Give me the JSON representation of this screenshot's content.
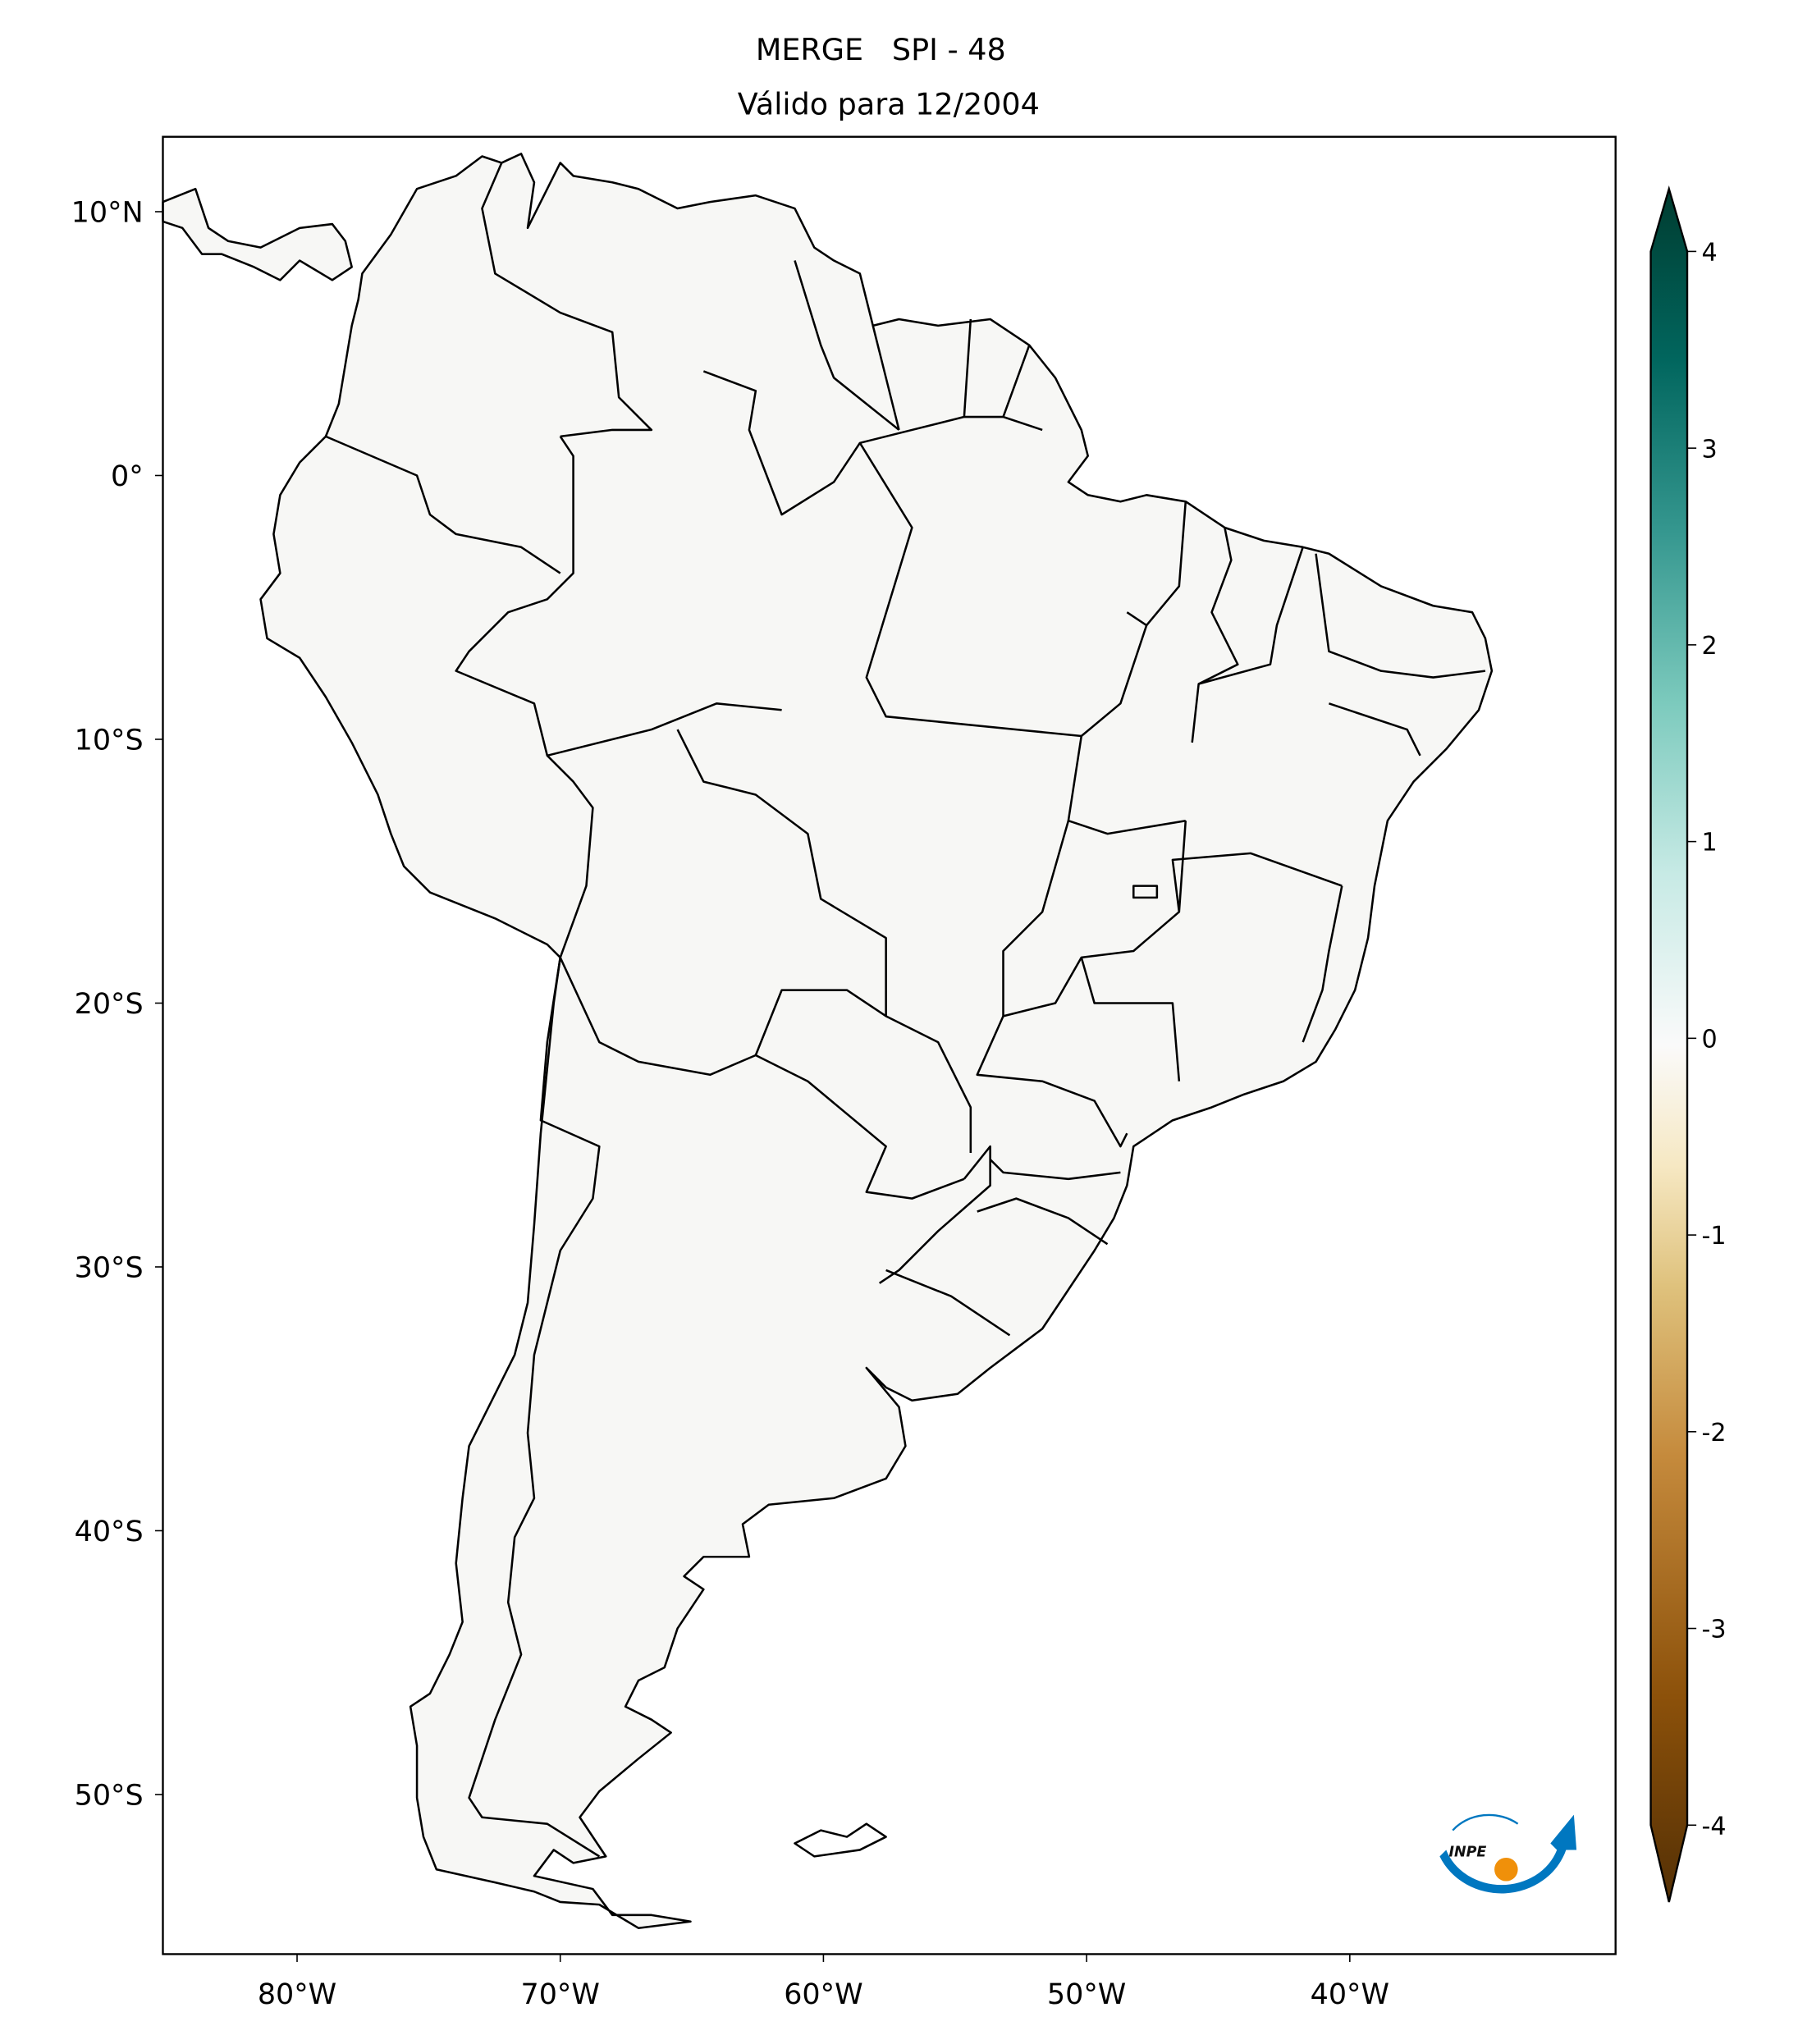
{
  "title": {
    "line1": "MERGE   SPI - 48",
    "line2": "Válido para 12/2004"
  },
  "map": {
    "projection": "PlateCarree",
    "lon_range": [
      -85,
      -30
    ],
    "lat_range": [
      -56,
      13
    ],
    "lat_ticks": [
      {
        "value": 10,
        "label": "10°N"
      },
      {
        "value": 0,
        "label": "0°"
      },
      {
        "value": -10,
        "label": "10°S"
      },
      {
        "value": -20,
        "label": "20°S"
      },
      {
        "value": -30,
        "label": "30°S"
      },
      {
        "value": -40,
        "label": "40°S"
      },
      {
        "value": -50,
        "label": "50°S"
      }
    ],
    "lon_ticks": [
      {
        "value": -80,
        "label": "80°W"
      },
      {
        "value": -70,
        "label": "70°W"
      },
      {
        "value": -60,
        "label": "60°W"
      },
      {
        "value": -50,
        "label": "50°W"
      },
      {
        "value": -40,
        "label": "40°W"
      }
    ]
  },
  "colorbar": {
    "colormap": "BrBG",
    "extend": "both",
    "range": [
      -4,
      4
    ],
    "ticks": [
      {
        "value": 4,
        "label": "4"
      },
      {
        "value": 3,
        "label": "3"
      },
      {
        "value": 2,
        "label": "2"
      },
      {
        "value": 1,
        "label": "1"
      },
      {
        "value": 0,
        "label": "0"
      },
      {
        "value": -1,
        "label": "-1"
      },
      {
        "value": -2,
        "label": "-2"
      },
      {
        "value": -3,
        "label": "-3"
      },
      {
        "value": -4,
        "label": "-4"
      }
    ],
    "colors": [
      "#543005",
      "#8c510a",
      "#bf812d",
      "#dfc27d",
      "#f6e8c3",
      "#f5f5f5",
      "#c7eae5",
      "#80cdc1",
      "#35978f",
      "#01665e",
      "#003c30"
    ]
  },
  "logo": {
    "text": "INPE",
    "blue": "#0077c0",
    "orange": "#f0900a"
  }
}
